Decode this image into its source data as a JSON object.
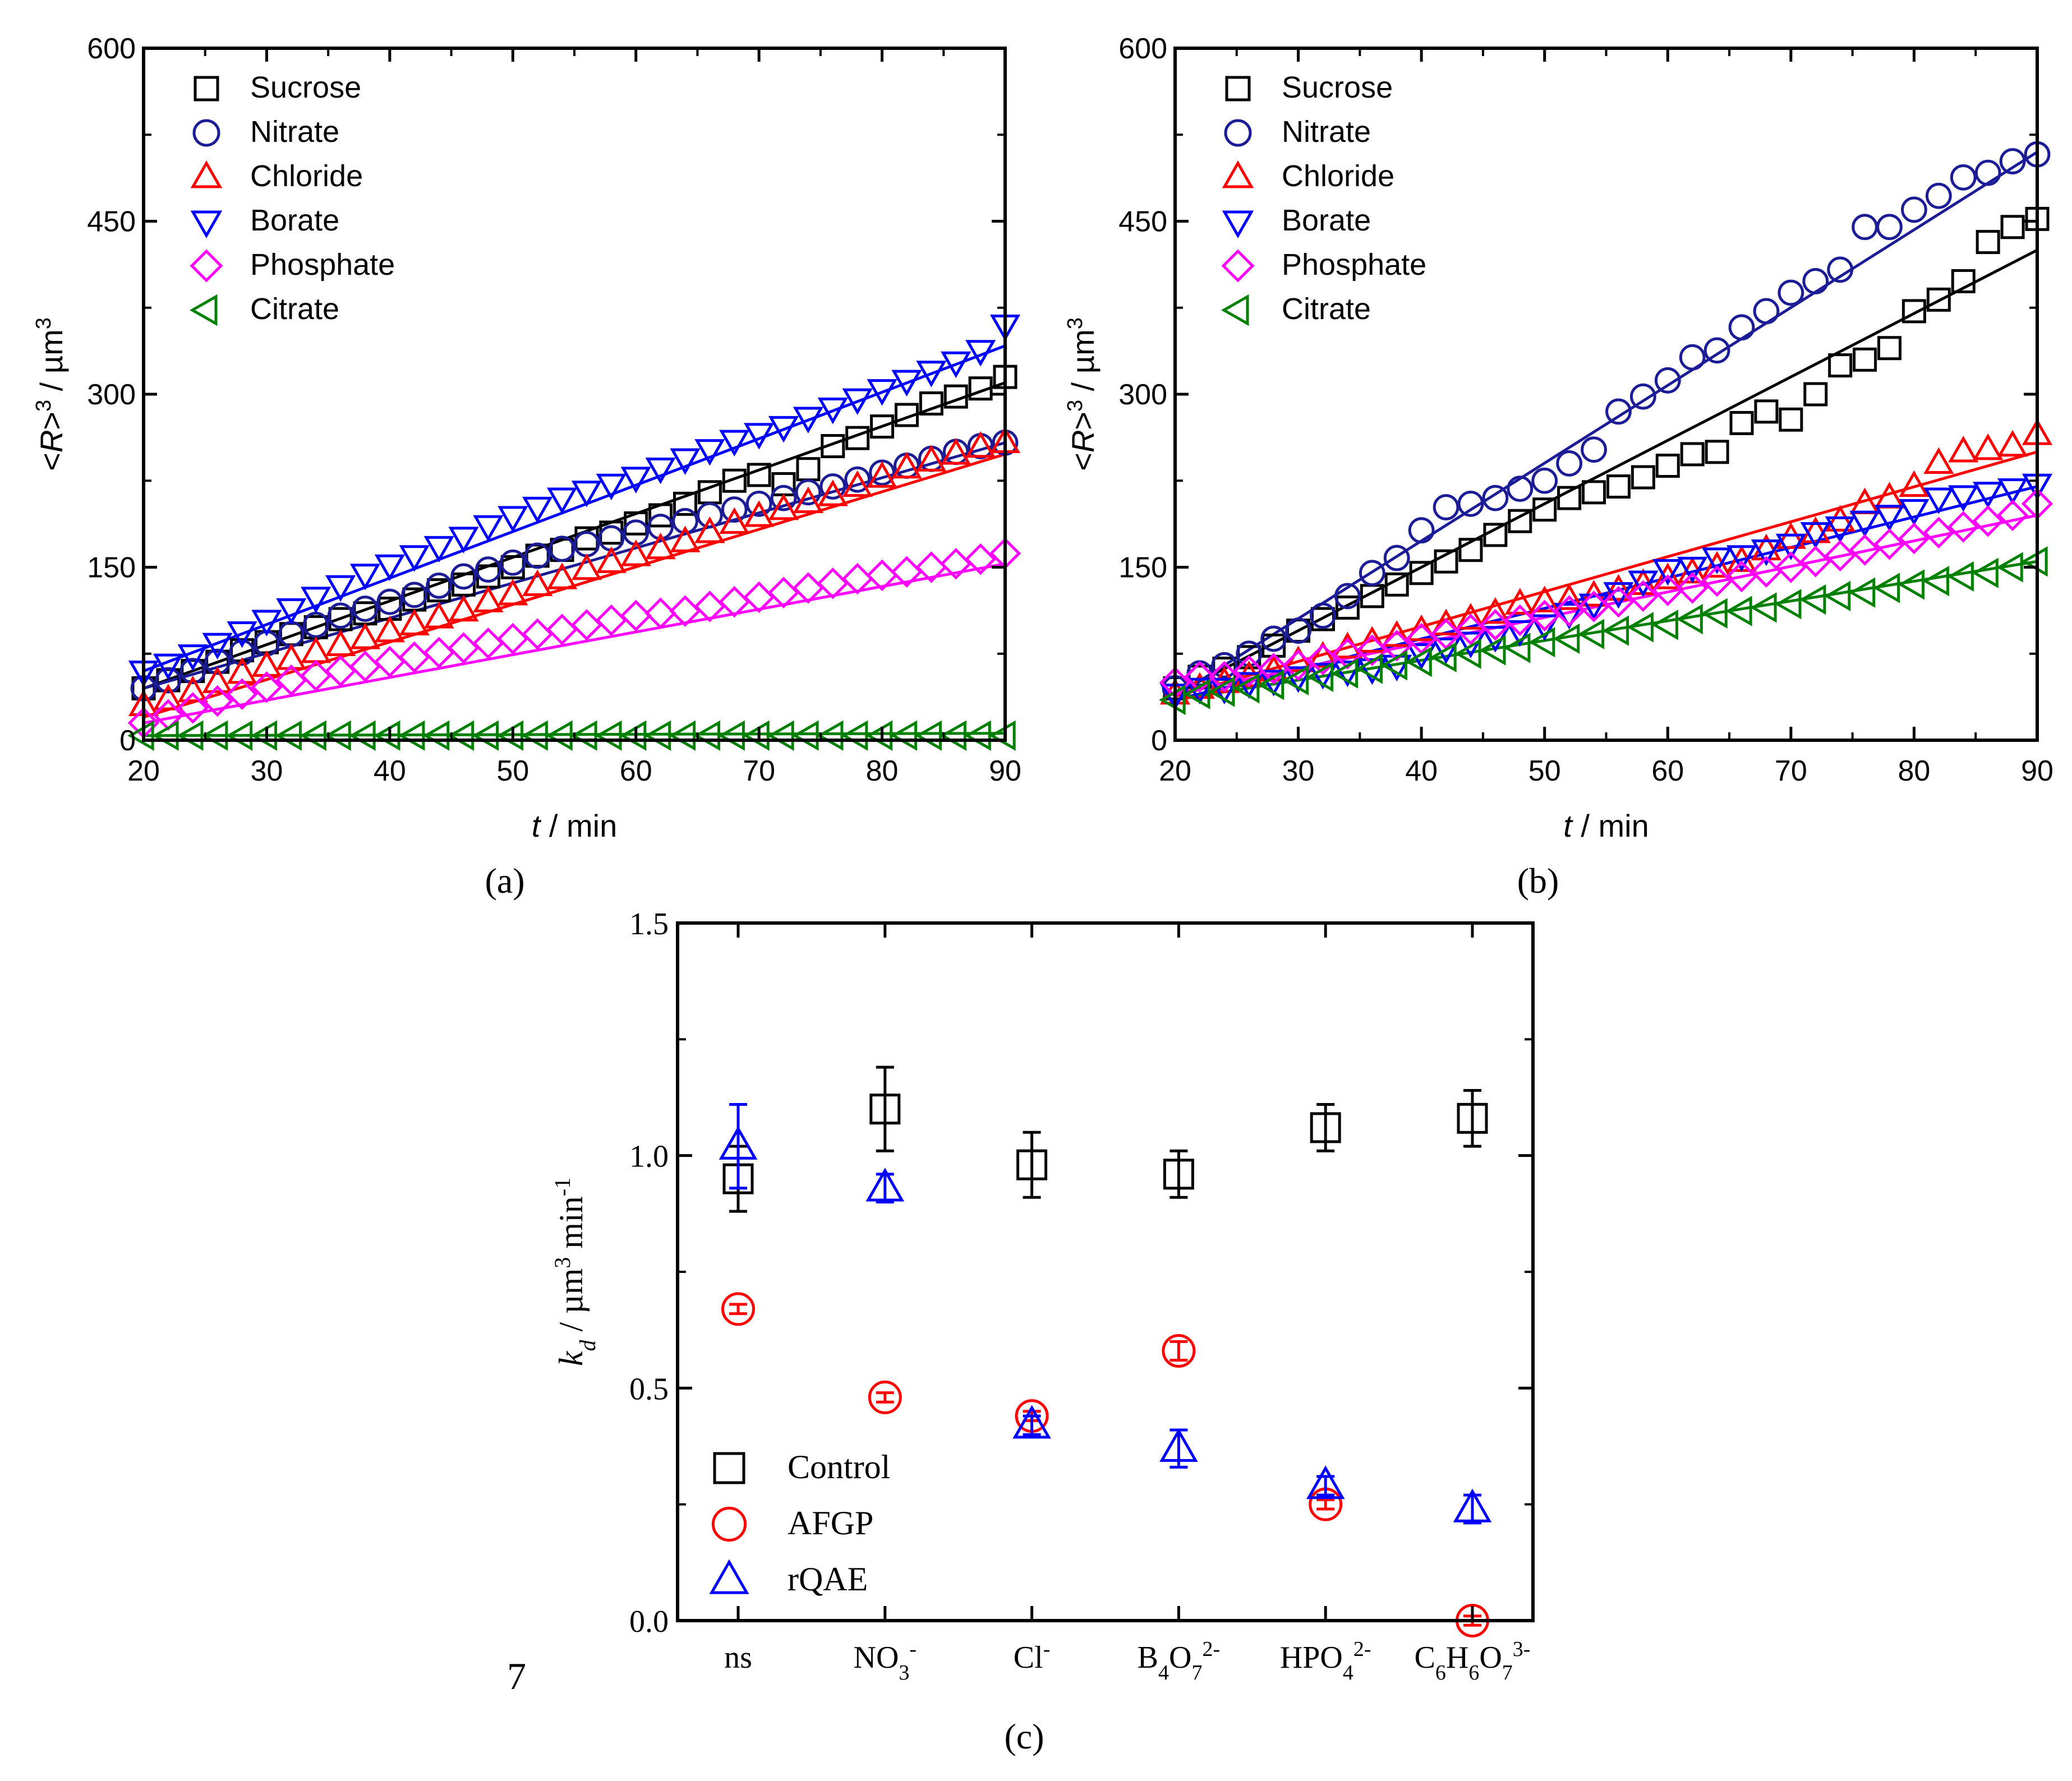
{
  "colors": {
    "black": "#000000",
    "navy": "#1c1c96",
    "red": "#ff0000",
    "blue": "#0000ff",
    "magenta": "#ff00ff",
    "green": "#008000"
  },
  "panel_labels": {
    "a": "(a)",
    "b": "(b)",
    "c": "(c)"
  },
  "stray_text": "7",
  "chart_data": [
    {
      "id": "a",
      "type": "scatter",
      "xlabel_italic": "t",
      "xlabel_rest": " / min",
      "ylabel_pre": "<",
      "ylabel_italic": "R",
      "ylabel_mid": ">",
      "ylabel_sup1": "3",
      "ylabel_unit": " / µm",
      "ylabel_sup2": "3",
      "xlim": [
        20,
        90
      ],
      "ylim": [
        0,
        600
      ],
      "xticks": [
        20,
        30,
        40,
        50,
        60,
        70,
        80,
        90
      ],
      "yticks": [
        0,
        150,
        300,
        450,
        600
      ],
      "x": [
        20,
        22,
        24,
        26,
        28,
        30,
        32,
        34,
        36,
        38,
        40,
        42,
        44,
        46,
        48,
        50,
        52,
        54,
        56,
        58,
        60,
        62,
        64,
        66,
        68,
        70,
        72,
        74,
        76,
        78,
        80,
        82,
        84,
        86,
        88,
        90
      ],
      "series": [
        {
          "name": "Sucrose",
          "marker": "square",
          "color": "#000000",
          "fit": [
            45,
            310
          ],
          "values": [
            45,
            52,
            60,
            68,
            78,
            85,
            92,
            98,
            105,
            110,
            114,
            122,
            130,
            135,
            142,
            150,
            160,
            165,
            175,
            180,
            188,
            195,
            205,
            215,
            225,
            230,
            222,
            235,
            255,
            262,
            272,
            282,
            292,
            298,
            305,
            315
          ]
        },
        {
          "name": "Nitrate",
          "marker": "circle",
          "color": "#1c1c96",
          "fit": [
            45,
            258
          ],
          "values": [
            45,
            52,
            60,
            68,
            76,
            84,
            92,
            100,
            108,
            114,
            120,
            126,
            134,
            142,
            148,
            154,
            160,
            166,
            170,
            175,
            180,
            185,
            190,
            195,
            200,
            205,
            210,
            215,
            220,
            226,
            232,
            238,
            244,
            250,
            255,
            258
          ]
        },
        {
          "name": "Chloride",
          "marker": "triangle-up",
          "color": "#ff0000",
          "fit": [
            20,
            248
          ],
          "values": [
            30,
            35,
            42,
            50,
            58,
            64,
            70,
            76,
            82,
            88,
            94,
            100,
            106,
            112,
            120,
            126,
            134,
            140,
            148,
            154,
            160,
            166,
            172,
            180,
            188,
            194,
            200,
            206,
            212,
            220,
            228,
            236,
            242,
            248,
            254,
            258
          ]
        },
        {
          "name": "Borate",
          "marker": "triangle-down",
          "color": "#0000ff",
          "fit": [
            60,
            342
          ],
          "values": [
            60,
            66,
            74,
            84,
            94,
            104,
            114,
            124,
            134,
            144,
            152,
            160,
            168,
            176,
            186,
            194,
            202,
            210,
            216,
            222,
            228,
            236,
            244,
            252,
            260,
            266,
            272,
            280,
            288,
            296,
            304,
            312,
            320,
            328,
            338,
            360
          ]
        },
        {
          "name": "Phosphate",
          "marker": "diamond",
          "color": "#ff00ff",
          "fit": [
            15,
            153
          ],
          "values": [
            15,
            22,
            28,
            34,
            40,
            46,
            52,
            56,
            60,
            64,
            68,
            72,
            76,
            80,
            84,
            88,
            92,
            96,
            100,
            104,
            108,
            110,
            112,
            116,
            120,
            124,
            128,
            132,
            136,
            140,
            143,
            146,
            150,
            153,
            157,
            162
          ]
        },
        {
          "name": "Citrate",
          "marker": "triangle-left",
          "color": "#008000",
          "fit": [
            4,
            6
          ],
          "values": [
            4,
            4,
            4,
            4,
            4,
            4,
            4,
            4,
            4,
            4,
            4,
            4,
            4,
            4,
            4,
            4,
            4,
            4,
            4,
            4,
            4,
            4,
            4,
            4,
            4,
            4,
            4,
            4,
            4,
            4,
            4,
            4,
            4,
            4,
            4,
            4
          ]
        }
      ]
    },
    {
      "id": "b",
      "type": "scatter",
      "xlabel_italic": "t",
      "xlabel_rest": " / min",
      "ylabel_pre": "<",
      "ylabel_italic": "R",
      "ylabel_mid": ">",
      "ylabel_sup1": "3",
      "ylabel_unit": " / µm",
      "ylabel_sup2": "3",
      "xlim": [
        20,
        90
      ],
      "ylim": [
        0,
        600
      ],
      "xticks": [
        20,
        30,
        40,
        50,
        60,
        70,
        80,
        90
      ],
      "yticks": [
        0,
        150,
        300,
        450,
        600
      ],
      "x": [
        20,
        22,
        24,
        26,
        28,
        30,
        32,
        34,
        36,
        38,
        40,
        42,
        44,
        46,
        48,
        50,
        52,
        54,
        56,
        58,
        60,
        62,
        64,
        66,
        68,
        70,
        72,
        74,
        76,
        78,
        80,
        82,
        84,
        86,
        88,
        90
      ],
      "series": [
        {
          "name": "Sucrose",
          "marker": "square",
          "color": "#000000",
          "fit": [
            40,
            425
          ],
          "values": [
            45,
            55,
            62,
            72,
            82,
            95,
            105,
            115,
            125,
            135,
            145,
            155,
            165,
            178,
            190,
            200,
            210,
            215,
            220,
            228,
            238,
            248,
            250,
            275,
            285,
            278,
            300,
            325,
            330,
            340,
            372,
            382,
            398,
            432,
            445,
            452
          ]
        },
        {
          "name": "Nitrate",
          "marker": "circle",
          "color": "#1c1c96",
          "fit": [
            38,
            510
          ],
          "values": [
            45,
            58,
            65,
            75,
            88,
            95,
            108,
            125,
            145,
            158,
            182,
            202,
            205,
            210,
            218,
            225,
            240,
            252,
            285,
            298,
            312,
            332,
            338,
            358,
            372,
            388,
            398,
            408,
            445,
            445,
            460,
            472,
            488,
            492,
            502,
            508
          ]
        },
        {
          "name": "Chloride",
          "marker": "triangle-up",
          "color": "#ff0000",
          "fit": [
            38,
            250
          ],
          "values": [
            40,
            45,
            50,
            55,
            60,
            68,
            72,
            80,
            85,
            90,
            95,
            100,
            105,
            110,
            118,
            120,
            122,
            125,
            130,
            135,
            140,
            145,
            150,
            155,
            165,
            175,
            180,
            190,
            205,
            210,
            220,
            240,
            250,
            252,
            255,
            265
          ]
        },
        {
          "name": "Borate",
          "marker": "triangle-down",
          "color": "#0000ff",
          "fit": [
            35,
            220
          ],
          "values": [
            40,
            45,
            45,
            50,
            52,
            55,
            58,
            60,
            62,
            65,
            75,
            80,
            85,
            90,
            95,
            100,
            110,
            118,
            128,
            138,
            148,
            150,
            158,
            160,
            165,
            170,
            180,
            185,
            190,
            195,
            200,
            210,
            212,
            215,
            218,
            222
          ]
        },
        {
          "name": "Phosphate",
          "marker": "diamond",
          "color": "#ff00ff",
          "fit": [
            40,
            195
          ],
          "values": [
            50,
            55,
            55,
            60,
            62,
            65,
            70,
            75,
            78,
            82,
            88,
            92,
            96,
            100,
            104,
            108,
            112,
            116,
            120,
            125,
            130,
            132,
            138,
            142,
            146,
            150,
            155,
            160,
            165,
            170,
            175,
            180,
            185,
            190,
            195,
            205
          ]
        },
        {
          "name": "Citrate",
          "marker": "triangle-left",
          "color": "#008000",
          "fit": [
            35,
            155
          ],
          "values": [
            35,
            40,
            42,
            45,
            48,
            52,
            55,
            58,
            62,
            65,
            68,
            72,
            75,
            78,
            80,
            85,
            88,
            92,
            95,
            98,
            100,
            105,
            110,
            112,
            115,
            118,
            122,
            125,
            128,
            132,
            135,
            138,
            142,
            145,
            150,
            155
          ]
        }
      ]
    },
    {
      "id": "c",
      "type": "scatter",
      "ylabel_k": "k",
      "ylabel_sub": "d",
      "ylabel_sep": "  /  µm",
      "ylabel_sup1": "3",
      "ylabel_min": " min",
      "ylabel_sup2": "-1",
      "ylim": [
        0.0,
        1.5
      ],
      "yticks": [
        0.0,
        0.5,
        1.0,
        1.5
      ],
      "yticklabels": [
        "0.0",
        "0.5",
        "1.0",
        "1.5"
      ],
      "categories": [
        {
          "base": "ns",
          "sub": "",
          "sup": ""
        },
        {
          "base": "NO",
          "sub": "3",
          "sup": "-"
        },
        {
          "base": "Cl",
          "sub": "",
          "sup": "-"
        },
        {
          "base": "B",
          "sub": "4",
          "mid": "O",
          "sub2": "7",
          "sup": "2-"
        },
        {
          "base": "HPO",
          "sub": "4",
          "sup": "2-"
        },
        {
          "base": "C",
          "sub": "6",
          "mid": "H",
          "sub2": "6",
          "mid2": "O",
          "sub3": "7",
          "sup": "3-"
        }
      ],
      "series": [
        {
          "name": "Control",
          "marker": "square",
          "color": "#000000",
          "values": [
            0.95,
            1.1,
            0.98,
            0.96,
            1.06,
            1.08
          ],
          "errors": [
            0.07,
            0.09,
            0.07,
            0.05,
            0.05,
            0.06
          ]
        },
        {
          "name": "AFGP",
          "marker": "circle",
          "color": "#ff0000",
          "values": [
            0.67,
            0.48,
            0.44,
            0.58,
            0.25,
            0.0
          ],
          "errors": [
            0.01,
            0.01,
            0.01,
            0.02,
            0.01,
            0.01
          ]
        },
        {
          "name": "rQAE",
          "marker": "triangle-up",
          "color": "#0000ff",
          "values": [
            1.02,
            0.93,
            0.42,
            0.37,
            0.29,
            0.24
          ],
          "errors": [
            0.09,
            0.03,
            0.02,
            0.04,
            0.02,
            0.03
          ]
        }
      ]
    }
  ]
}
